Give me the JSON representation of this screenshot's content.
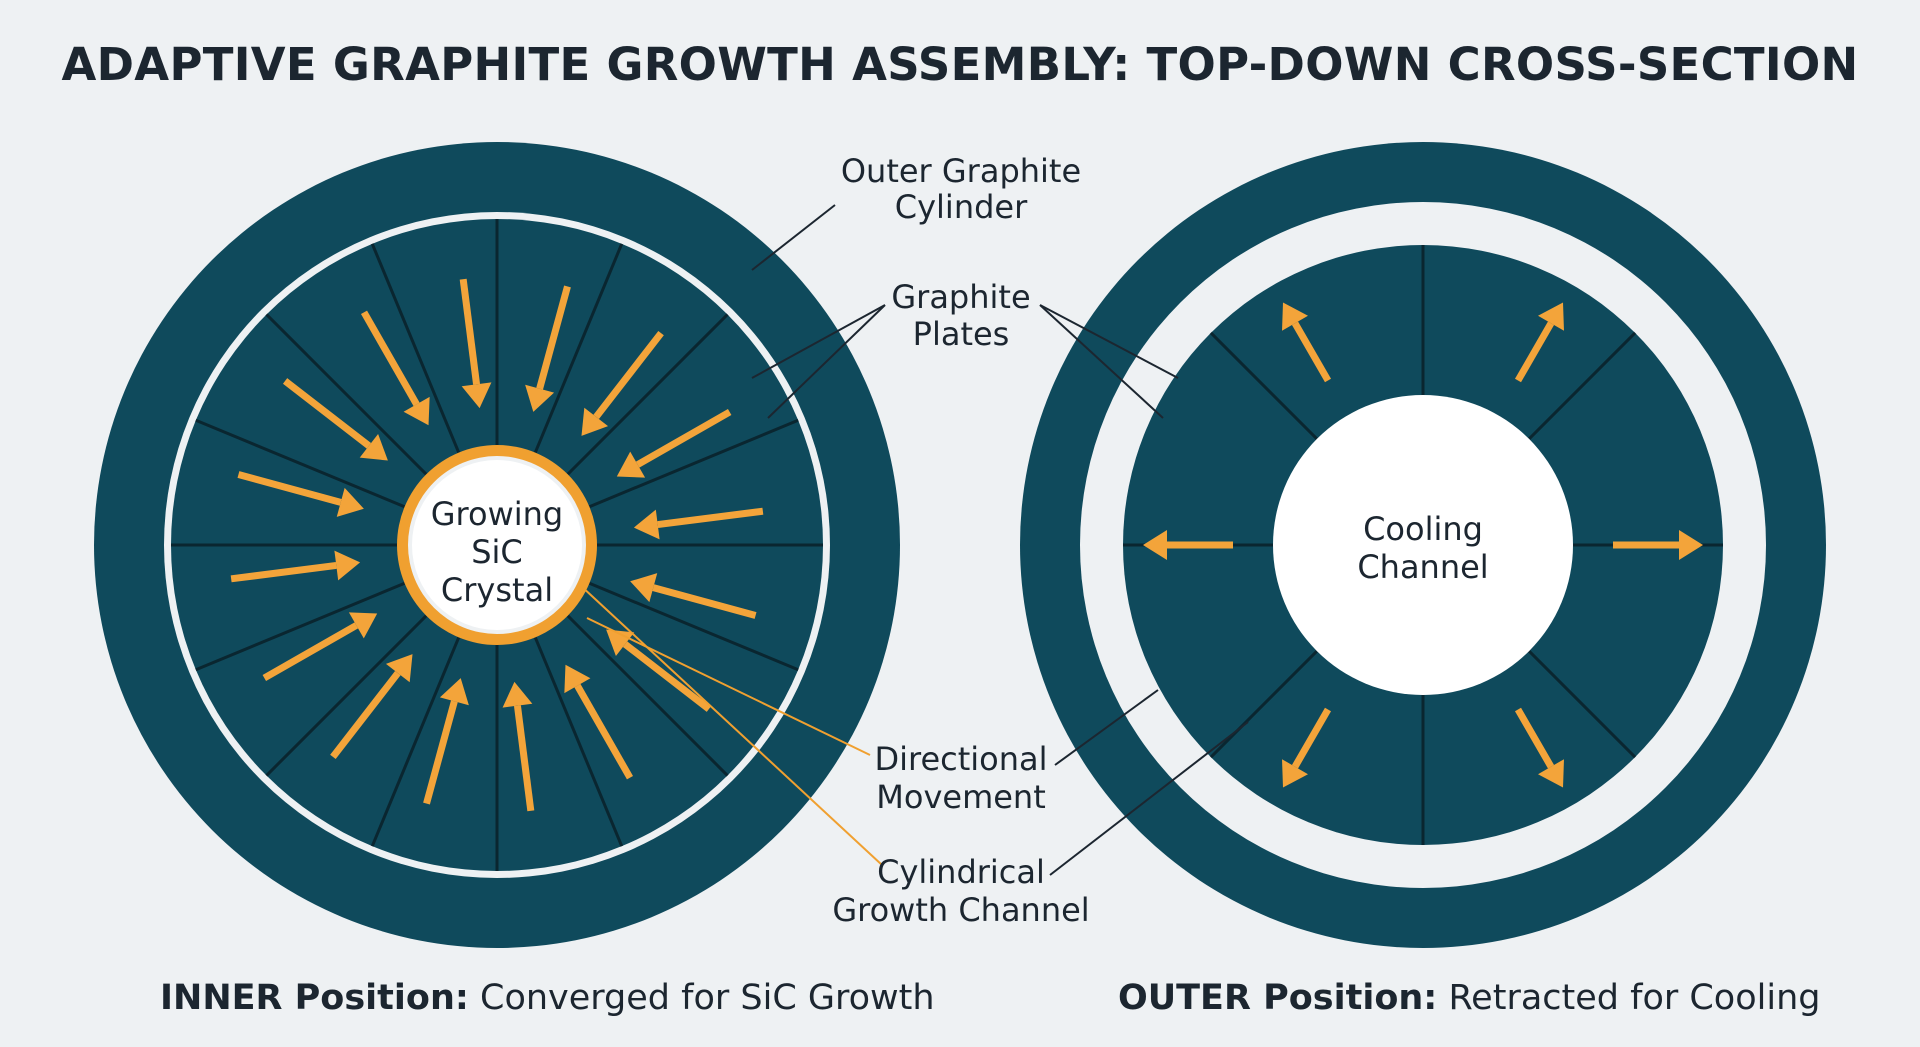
{
  "title": "ADAPTIVE GRAPHITE GROWTH ASSEMBLY: TOP-DOWN CROSS-SECTION",
  "colors": {
    "background": "#eef1f3",
    "graphite": "#0f4a5c",
    "arrow": "#f3a43a",
    "crystal_ring": "#f0a030",
    "separator": "#0a2630",
    "text": "#1c2630"
  },
  "left_panel": {
    "crystal_label": [
      "Growing",
      "SiC",
      "Crystal"
    ],
    "caption_bold": "INNER Position:",
    "caption_rest": " Converged for SiC Growth",
    "arrow_direction": "inward"
  },
  "right_panel": {
    "channel_label": [
      "Cooling",
      "Channel"
    ],
    "caption_bold": "OUTER Position:",
    "caption_rest": " Retracted for Cooling",
    "arrow_direction": "outward"
  },
  "callouts": {
    "outer_cylinder": [
      "Outer Graphite",
      "Cylinder"
    ],
    "graphite_plates": [
      "Graphite",
      "Plates"
    ],
    "directional_movement": [
      "Directional",
      "Movement"
    ],
    "growth_channel": [
      "Cylindrical",
      "Growth Channel"
    ]
  }
}
